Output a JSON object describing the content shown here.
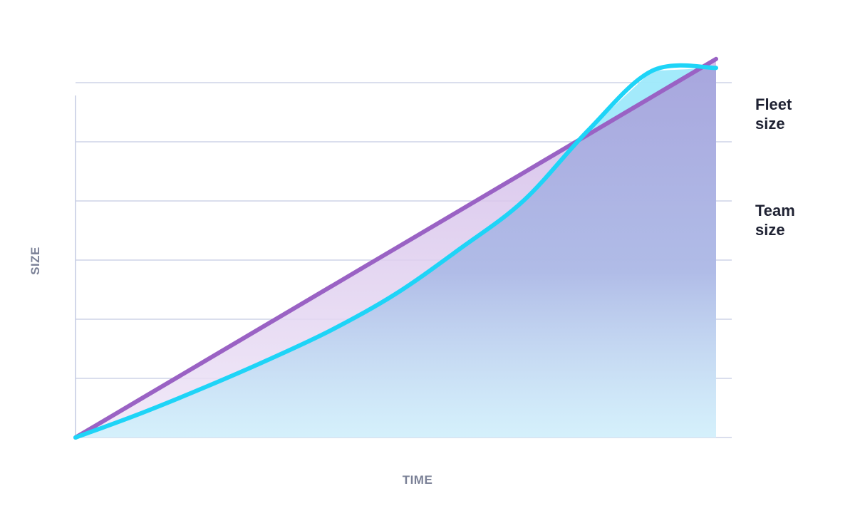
{
  "chart_data": {
    "type": "area",
    "title": "",
    "xlabel": "TIME",
    "ylabel": "SIZE",
    "xlim": [
      0,
      10
    ],
    "ylim": [
      0,
      6
    ],
    "grid": true,
    "x": [
      0,
      1,
      2,
      3,
      4,
      5,
      6,
      7,
      8,
      9,
      10
    ],
    "series": [
      {
        "name": "Fleet size",
        "label_lines": [
          "Fleet",
          "size"
        ],
        "color": "#1ed4f7",
        "values": [
          0,
          0.4,
          0.84,
          1.31,
          1.82,
          2.43,
          3.19,
          4.01,
          5.19,
          6.2,
          6.25
        ]
      },
      {
        "name": "Team size",
        "label_lines": [
          "Team",
          "size"
        ],
        "color": "#9a62c4",
        "values": [
          0,
          0.64,
          1.28,
          1.92,
          2.56,
          3.2,
          3.84,
          4.48,
          5.12,
          5.76,
          6.4
        ]
      }
    ],
    "colors": {
      "grid": "#c3cae2",
      "axis": "#c3cae2",
      "fleet_fill": "#9ee9fb",
      "team_fill_top": "#a8a7de",
      "team_fill_bottom": "#f6f5fc",
      "label": "#1f2233",
      "axis_label": "#7a8096"
    }
  }
}
